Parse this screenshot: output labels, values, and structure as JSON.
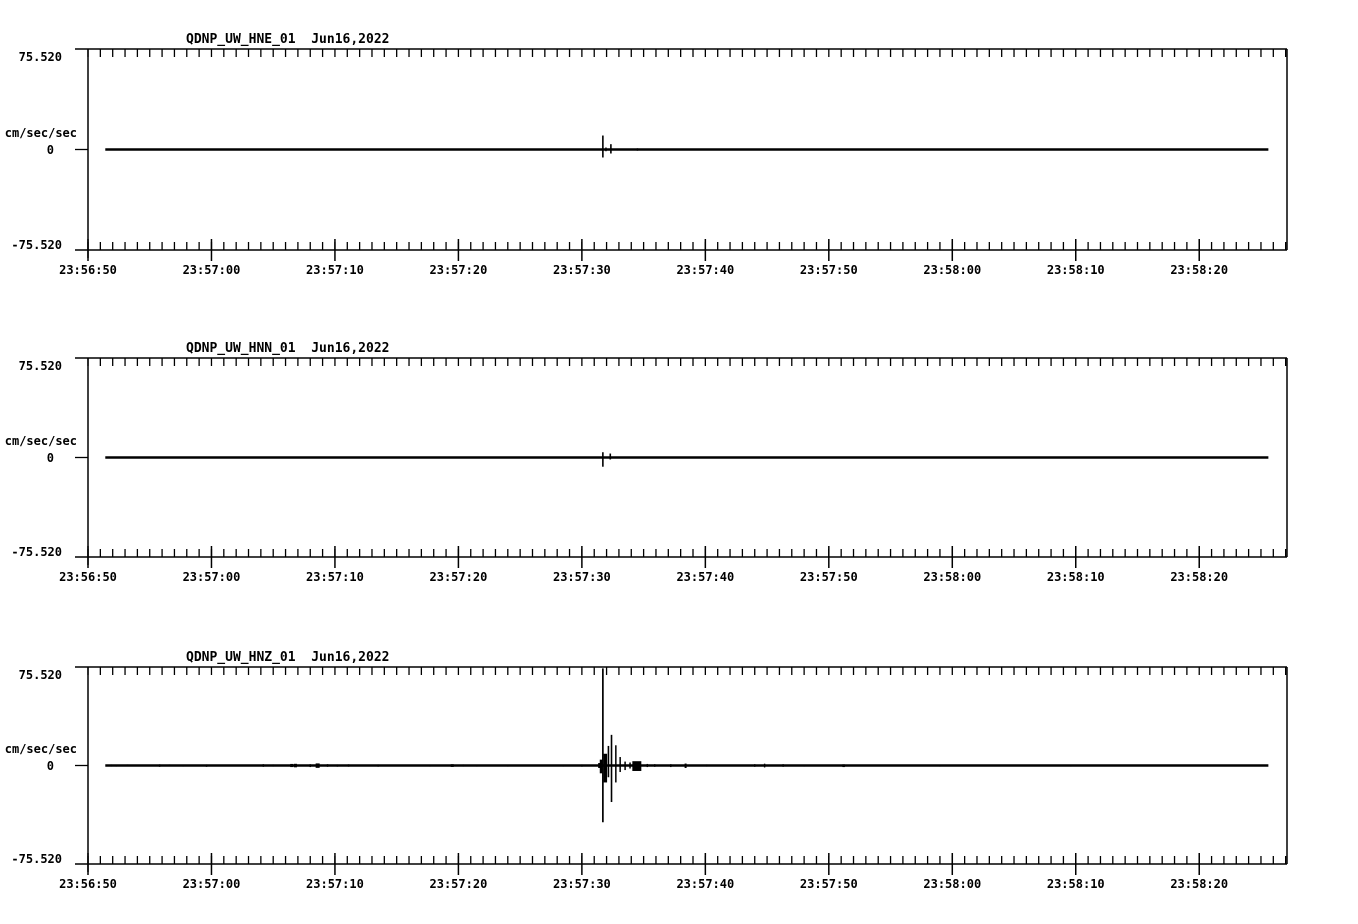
{
  "app": {
    "background_color": "#ffffff",
    "foreground_color": "#000000",
    "description": "Three-channel strong-motion seismogram display for station QDNP (network UW), event of Jun16,2022"
  },
  "axes": {
    "y_tick_labels": [
      "75.520",
      "0",
      "-75.520"
    ],
    "y_unit_label": "cm/sec/sec",
    "x_tick_labels": [
      "23:56:50",
      "23:57:00",
      "23:57:10",
      "23:57:20",
      "23:57:30",
      "23:57:40",
      "23:57:50",
      "23:58:00",
      "23:58:10",
      "23:58:20"
    ],
    "x_tick_interval_seconds": 10,
    "x_minor_tick_interval_seconds": 1
  },
  "chart_data": [
    {
      "type": "line",
      "title": "QDNP_UW_HNE_01  Jun16,2022",
      "station": "QDNP",
      "network": "UW",
      "channel": "HNE",
      "location": "01",
      "date": "Jun16,2022",
      "ylabel": "cm/sec/sec",
      "ylim": [
        -75.52,
        75.52
      ],
      "ytick_labels": [
        "75.520",
        "0",
        "-75.520"
      ],
      "x_start": "23:56:50",
      "x_end": "23:58:27",
      "x_tick_labels": [
        "23:56:50",
        "23:57:00",
        "23:57:10",
        "23:57:20",
        "23:57:30",
        "23:57:40",
        "23:57:50",
        "23:58:00",
        "23:58:10",
        "23:58:20"
      ],
      "grid": false,
      "baseline_value": 0,
      "spike_format": [
        "t_seconds_after_x_start",
        "up_amplitude_cm_s2",
        "down_amplitude_cm_s2",
        "stroke_px_optional"
      ],
      "spikes": [
        [
          41.7,
          10.5,
          6.0,
          1.6
        ],
        [
          41.95,
          1.5,
          1.3
        ],
        [
          42.35,
          4.0,
          3.0,
          1.6
        ],
        [
          44.5,
          0.9,
          0.9
        ]
      ]
    },
    {
      "type": "line",
      "title": "QDNP_UW_HNN_01  Jun16,2022",
      "station": "QDNP",
      "network": "UW",
      "channel": "HNN",
      "location": "01",
      "date": "Jun16,2022",
      "ylabel": "cm/sec/sec",
      "ylim": [
        -75.52,
        75.52
      ],
      "ytick_labels": [
        "75.520",
        "0",
        "-75.520"
      ],
      "x_start": "23:56:50",
      "x_end": "23:58:27",
      "x_tick_labels": [
        "23:56:50",
        "23:57:00",
        "23:57:10",
        "23:57:20",
        "23:57:30",
        "23:57:40",
        "23:57:50",
        "23:58:00",
        "23:58:10",
        "23:58:20"
      ],
      "grid": false,
      "baseline_value": 0,
      "spike_format": [
        "t_seconds_after_x_start",
        "up_amplitude_cm_s2",
        "down_amplitude_cm_s2",
        "stroke_px_optional"
      ],
      "spikes": [
        [
          41.7,
          4.0,
          7.0,
          1.6
        ],
        [
          42.3,
          3.0,
          1.5,
          1.6
        ]
      ]
    },
    {
      "type": "line",
      "title": "QDNP_UW_HNZ_01  Jun16,2022",
      "station": "QDNP",
      "network": "UW",
      "channel": "HNZ",
      "location": "01",
      "date": "Jun16,2022",
      "ylabel": "cm/sec/sec",
      "ylim": [
        -75.52,
        75.52
      ],
      "ytick_labels": [
        "75.520",
        "0",
        "-75.520"
      ],
      "x_start": "23:56:50",
      "x_end": "23:58:27",
      "x_tick_labels": [
        "23:56:50",
        "23:57:00",
        "23:57:10",
        "23:57:20",
        "23:57:30",
        "23:57:40",
        "23:57:50",
        "23:58:00",
        "23:58:10",
        "23:58:20"
      ],
      "grid": false,
      "baseline_value": 0,
      "spike_format": [
        "t_seconds_after_x_start",
        "up_amplitude_cm_s2",
        "down_amplitude_cm_s2",
        "stroke_px_optional"
      ],
      "spikes": [
        [
          1.9,
          0.8,
          0.8
        ],
        [
          2.3,
          0.6,
          0.8
        ],
        [
          3.2,
          0.8,
          0.6
        ],
        [
          4.4,
          0.6,
          0.7
        ],
        [
          5.8,
          0.9,
          1.0
        ],
        [
          6.6,
          0.8,
          0.7
        ],
        [
          7.7,
          0.7,
          0.8
        ],
        [
          9.6,
          0.8,
          1.0
        ],
        [
          14.2,
          1.0,
          1.0
        ],
        [
          15.0,
          0.8,
          0.8
        ],
        [
          16.5,
          1.2,
          1.2,
          3
        ],
        [
          16.8,
          1.3,
          1.4,
          3
        ],
        [
          18.0,
          1.0,
          1.2
        ],
        [
          18.6,
          1.6,
          1.8,
          4
        ],
        [
          19.4,
          1.0,
          1.0
        ],
        [
          20.2,
          0.8,
          0.9
        ],
        [
          21.1,
          0.9,
          0.9
        ],
        [
          23.5,
          0.8,
          0.9
        ],
        [
          23.9,
          0.7,
          0.7
        ],
        [
          27.7,
          0.7,
          0.8
        ],
        [
          29.5,
          1.0,
          1.1,
          3
        ],
        [
          30.4,
          0.8,
          0.8
        ],
        [
          31.5,
          0.7,
          0.8
        ],
        [
          34.0,
          0.7,
          0.8
        ],
        [
          36.4,
          0.6,
          0.7
        ],
        [
          38.5,
          0.7,
          0.8
        ],
        [
          40.0,
          0.8,
          0.9
        ],
        [
          41.4,
          1.9,
          1.9,
          2
        ],
        [
          41.55,
          4.5,
          6.0,
          2.5
        ],
        [
          41.7,
          74.5,
          43.5,
          1.7
        ],
        [
          41.9,
          9.0,
          13.0,
          3.5
        ],
        [
          42.15,
          15.0,
          9.0,
          1.6
        ],
        [
          42.4,
          23.5,
          28.0,
          1.6
        ],
        [
          42.75,
          15.5,
          13.0,
          1.5
        ],
        [
          43.1,
          6.5,
          5.0,
          1.5
        ],
        [
          43.5,
          3.0,
          3.5,
          1.5
        ],
        [
          43.9,
          2.3,
          2.3,
          1.5
        ],
        [
          44.45,
          3.3,
          4.2,
          9
        ],
        [
          45.3,
          1.2,
          1.2
        ],
        [
          45.9,
          1.0,
          1.0
        ],
        [
          47.2,
          1.0,
          1.2
        ],
        [
          48.4,
          1.5,
          1.9,
          2
        ],
        [
          50.1,
          0.8,
          0.8
        ],
        [
          54.0,
          1.0,
          1.0
        ],
        [
          54.8,
          1.4,
          1.5
        ],
        [
          56.3,
          1.0,
          1.0
        ],
        [
          58.0,
          0.6,
          0.8
        ],
        [
          61.2,
          0.9,
          1.2,
          2.5
        ],
        [
          63.8,
          0.5,
          0.7
        ],
        [
          65.8,
          0.5,
          0.7
        ],
        [
          69.0,
          0.6,
          0.8
        ],
        [
          72.9,
          0.5,
          0.7
        ],
        [
          75.7,
          0.5,
          0.6
        ],
        [
          79.6,
          0.6,
          0.8
        ],
        [
          80.7,
          0.5,
          0.6
        ],
        [
          82.1,
          0.5,
          0.7
        ],
        [
          83.4,
          0.5,
          0.6
        ],
        [
          85.0,
          0.6,
          0.7
        ],
        [
          86.8,
          0.5,
          0.6
        ],
        [
          88.7,
          0.5,
          0.6
        ],
        [
          91.1,
          0.6,
          0.7
        ],
        [
          92.5,
          0.5,
          0.6
        ],
        [
          93.9,
          0.5,
          0.6
        ],
        [
          95.2,
          0.5,
          0.6
        ]
      ]
    }
  ]
}
